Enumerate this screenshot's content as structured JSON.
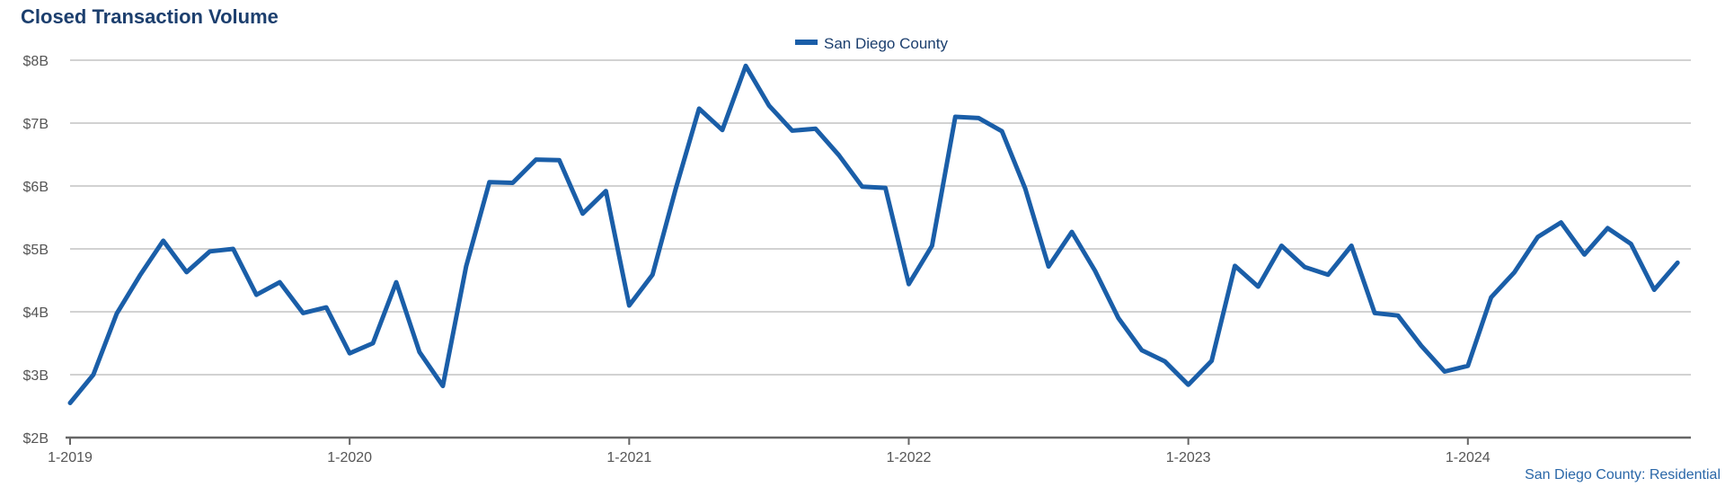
{
  "chart_data": {
    "type": "line",
    "title": "Closed Transaction Volume",
    "source_label": "San Diego County: Residential",
    "legend_position": "top-center",
    "grid": true,
    "ylim": [
      2,
      8
    ],
    "yticks": [
      {
        "value": 2,
        "label": "$2B"
      },
      {
        "value": 3,
        "label": "$3B"
      },
      {
        "value": 4,
        "label": "$4B"
      },
      {
        "value": 5,
        "label": "$5B"
      },
      {
        "value": 6,
        "label": "$6B"
      },
      {
        "value": 7,
        "label": "$7B"
      },
      {
        "value": 8,
        "label": "$8B"
      }
    ],
    "xticks": [
      {
        "date": "2019-01",
        "label": "1-2019"
      },
      {
        "date": "2020-01",
        "label": "1-2020"
      },
      {
        "date": "2021-01",
        "label": "1-2021"
      },
      {
        "date": "2022-01",
        "label": "1-2022"
      },
      {
        "date": "2023-01",
        "label": "1-2023"
      },
      {
        "date": "2024-01",
        "label": "1-2024"
      }
    ],
    "x": [
      "2019-01",
      "2019-02",
      "2019-03",
      "2019-04",
      "2019-05",
      "2019-06",
      "2019-07",
      "2019-08",
      "2019-09",
      "2019-10",
      "2019-11",
      "2019-12",
      "2020-01",
      "2020-02",
      "2020-03",
      "2020-04",
      "2020-05",
      "2020-06",
      "2020-07",
      "2020-08",
      "2020-09",
      "2020-10",
      "2020-11",
      "2020-12",
      "2021-01",
      "2021-02",
      "2021-03",
      "2021-04",
      "2021-05",
      "2021-06",
      "2021-07",
      "2021-08",
      "2021-09",
      "2021-10",
      "2021-11",
      "2021-12",
      "2022-01",
      "2022-02",
      "2022-03",
      "2022-04",
      "2022-05",
      "2022-06",
      "2022-07",
      "2022-08",
      "2022-09",
      "2022-10",
      "2022-11",
      "2022-12",
      "2023-01",
      "2023-02",
      "2023-03",
      "2023-04",
      "2023-05",
      "2023-06",
      "2023-07",
      "2023-08",
      "2023-09",
      "2023-10",
      "2023-11",
      "2023-12",
      "2024-01",
      "2024-02",
      "2024-03",
      "2024-04",
      "2024-05",
      "2024-06",
      "2024-07",
      "2024-08",
      "2024-09",
      "2024-10"
    ],
    "series": [
      {
        "name": "San Diego County",
        "color": "#1a5ea8",
        "values": [
          2.55,
          3.0,
          3.97,
          4.58,
          5.13,
          4.63,
          4.96,
          5.0,
          4.27,
          4.47,
          3.98,
          4.07,
          3.34,
          3.5,
          4.47,
          3.36,
          2.82,
          4.72,
          6.06,
          6.05,
          6.42,
          6.41,
          5.56,
          5.92,
          4.1,
          4.59,
          5.96,
          7.23,
          6.89,
          7.91,
          7.28,
          6.88,
          6.91,
          6.49,
          5.99,
          5.97,
          4.44,
          5.05,
          7.1,
          7.08,
          6.87,
          5.96,
          4.72,
          5.27,
          4.65,
          3.9,
          3.39,
          3.21,
          2.84,
          3.22,
          4.73,
          4.4,
          5.05,
          4.71,
          4.59,
          5.05,
          3.98,
          3.94,
          3.46,
          3.05,
          3.14,
          4.23,
          4.63,
          5.19,
          5.42,
          4.91,
          5.33,
          5.08,
          4.35,
          4.78
        ]
      }
    ]
  }
}
